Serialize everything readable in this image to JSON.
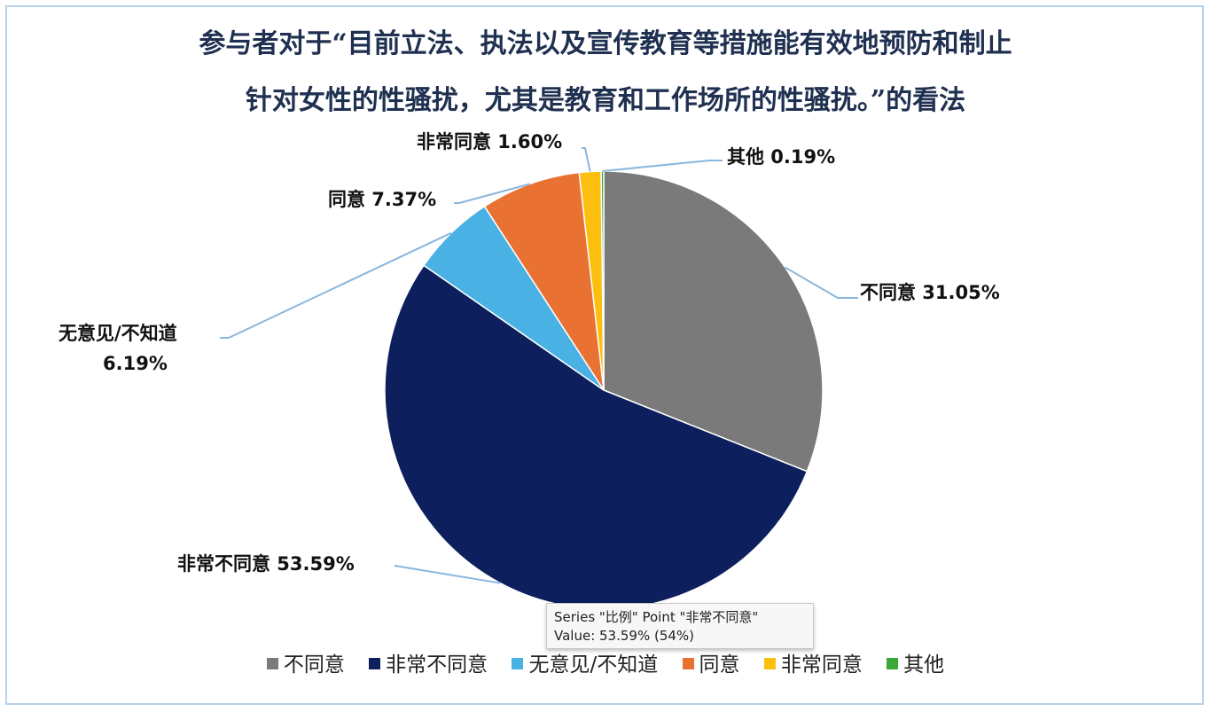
{
  "chart_data": {
    "type": "pie",
    "title_line1": "参与者对于“目前立法、执法以及宣传教育等措施能有效地预防和制止",
    "title_line2": "针对女性的性骚扰，尤其是教育和工作场所的性骚扰。”的看法",
    "slices": [
      {
        "name": "不同意",
        "value": 31.05,
        "label": "不同意 31.05%",
        "color": "#7a7a7a"
      },
      {
        "name": "非常不同意",
        "value": 53.59,
        "label": "非常不同意 53.59%",
        "color": "#0d1f5c"
      },
      {
        "name": "无意见/不知道",
        "value": 6.19,
        "label_line1": "无意见/不知道",
        "label_line2": "6.19%",
        "color": "#49b1e3"
      },
      {
        "name": "同意",
        "value": 7.37,
        "label": "同意 7.37%",
        "color": "#e97132"
      },
      {
        "name": "非常同意",
        "value": 1.6,
        "label": "非常同意 1.60%",
        "color": "#fdbf0f"
      },
      {
        "name": "其他",
        "value": 0.19,
        "label": "其他 0.19%",
        "color": "#3aa836"
      }
    ],
    "legend_position": "bottom",
    "leader_line_color": "#8ab6de"
  },
  "tooltip": {
    "line1": "Series \"比例\" Point \"非常不同意\"",
    "line2": "Value: 53.59% (54%)"
  }
}
